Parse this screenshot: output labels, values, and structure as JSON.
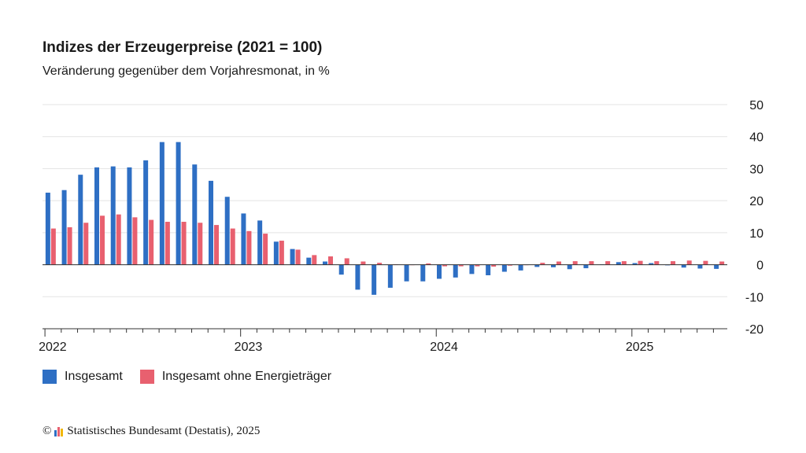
{
  "chart_data": {
    "type": "bar",
    "title": "Indizes der Erzeugerpreise (2021 = 100)",
    "subtitle": "Veränderung gegenüber dem Vorjahresmonat, in %",
    "ylim": [
      -20,
      50
    ],
    "yticks": [
      50,
      40,
      30,
      20,
      10,
      0,
      -10,
      -20
    ],
    "grid": true,
    "legend_position": "bottom-left",
    "year_labels": [
      "2022",
      "2023",
      "2024",
      "2025"
    ],
    "categories": [
      "2022-01",
      "2022-02",
      "2022-03",
      "2022-04",
      "2022-05",
      "2022-06",
      "2022-07",
      "2022-08",
      "2022-09",
      "2022-10",
      "2022-11",
      "2022-12",
      "2023-01",
      "2023-02",
      "2023-03",
      "2023-04",
      "2023-05",
      "2023-06",
      "2023-07",
      "2023-08",
      "2023-09",
      "2023-10",
      "2023-11",
      "2023-12",
      "2024-01",
      "2024-02",
      "2024-03",
      "2024-04",
      "2024-05",
      "2024-06",
      "2024-07",
      "2024-08",
      "2024-09",
      "2024-10",
      "2024-11",
      "2024-12",
      "2025-01",
      "2025-02",
      "2025-03",
      "2025-04",
      "2025-05",
      "2025-06"
    ],
    "series": [
      {
        "name": "Insgesamt",
        "color": "#2e6fc4",
        "values": [
          22.5,
          23.3,
          28.1,
          30.4,
          30.7,
          30.4,
          32.6,
          38.3,
          38.3,
          31.3,
          26.2,
          21.2,
          16.0,
          13.8,
          7.2,
          4.9,
          2.2,
          1.0,
          -3.1,
          -7.8,
          -9.4,
          -7.2,
          -5.2,
          -5.2,
          -4.4,
          -4.0,
          -2.9,
          -3.3,
          -2.2,
          -1.8,
          -0.7,
          -0.8,
          -1.4,
          -1.1,
          0.1,
          0.8,
          0.5,
          0.5,
          -0.2,
          -0.9,
          -1.2,
          -1.3
        ]
      },
      {
        "name": "Insgesamt ohne Energieträger",
        "color": "#e8606f",
        "values": [
          11.3,
          11.7,
          13.1,
          15.3,
          15.7,
          14.8,
          14.0,
          13.4,
          13.4,
          13.1,
          12.4,
          11.3,
          10.5,
          9.7,
          7.5,
          4.7,
          3.0,
          2.6,
          2.0,
          1.0,
          0.6,
          0.1,
          0.0,
          0.4,
          -0.5,
          -0.5,
          -0.5,
          -0.6,
          -0.3,
          0.0,
          0.6,
          1.0,
          1.1,
          1.1,
          1.1,
          1.1,
          1.2,
          1.1,
          1.1,
          1.3,
          1.2,
          1.0
        ]
      }
    ]
  },
  "source": {
    "copyright": "©",
    "text": "Statistisches Bundesamt (Destatis), 2025",
    "logo_colors": [
      "#2e6fc4",
      "#e8606f",
      "#f2b705"
    ]
  }
}
